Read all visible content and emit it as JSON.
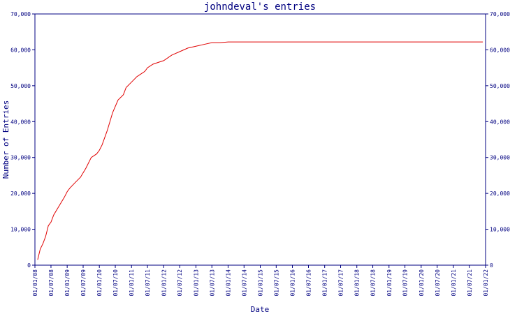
{
  "chart_data": {
    "type": "line",
    "title": "johndeval's entries",
    "xlabel": "Date",
    "ylabel": "Number of Entries",
    "ylim": [
      0,
      70000
    ],
    "y_ticks": [
      "0",
      "10,000",
      "20,000",
      "30,000",
      "40,000",
      "50,000",
      "60,000",
      "70,000"
    ],
    "x_ticks": [
      "01/01/08",
      "01/07/08",
      "01/01/09",
      "01/07/09",
      "01/01/10",
      "01/07/10",
      "01/01/11",
      "01/07/11",
      "01/01/12",
      "01/07/12",
      "01/01/13",
      "01/07/13",
      "01/01/14",
      "01/07/14",
      "01/01/15",
      "01/07/15",
      "01/01/16",
      "01/07/16",
      "01/01/17",
      "01/07/17",
      "01/01/18",
      "01/07/18",
      "01/01/19",
      "01/07/19",
      "01/01/20",
      "01/07/20",
      "01/01/21",
      "01/07/21",
      "01/01/22"
    ],
    "grid": false,
    "line_color": "#e00000",
    "axis_color": "#000080",
    "series": [
      {
        "x": [
          "2008-02",
          "2008-03",
          "2008-04",
          "2008-05",
          "2008-06",
          "2008-07",
          "2008-08",
          "2008-10",
          "2008-12",
          "2009-01",
          "2009-02",
          "2009-04",
          "2009-06",
          "2009-08",
          "2009-10",
          "2009-12",
          "2010-01",
          "2010-02",
          "2010-04",
          "2010-06",
          "2010-08",
          "2010-10",
          "2010-11",
          "2011-01",
          "2011-03",
          "2011-04",
          "2011-06",
          "2011-07",
          "2011-09",
          "2011-11",
          "2012-01",
          "2012-04",
          "2012-07",
          "2012-10",
          "2013-01",
          "2013-04",
          "2013-07",
          "2013-10",
          "2014-01",
          "2014-04",
          "2014-07",
          "2014-10",
          "2015-01",
          "2017-01",
          "2019-01",
          "2021-01",
          "2021-12"
        ],
        "values": [
          1500,
          4500,
          6000,
          8000,
          11000,
          12000,
          14000,
          16500,
          19000,
          20500,
          21500,
          23000,
          24500,
          27000,
          30000,
          31000,
          32000,
          33500,
          37500,
          42500,
          46000,
          47500,
          49500,
          51000,
          52500,
          53000,
          54000,
          55000,
          56000,
          56500,
          57000,
          58500,
          59500,
          60500,
          61000,
          61500,
          62000,
          62000,
          62200,
          62200,
          62200,
          62200,
          62200,
          62200,
          62200,
          62200,
          62200
        ]
      }
    ]
  }
}
